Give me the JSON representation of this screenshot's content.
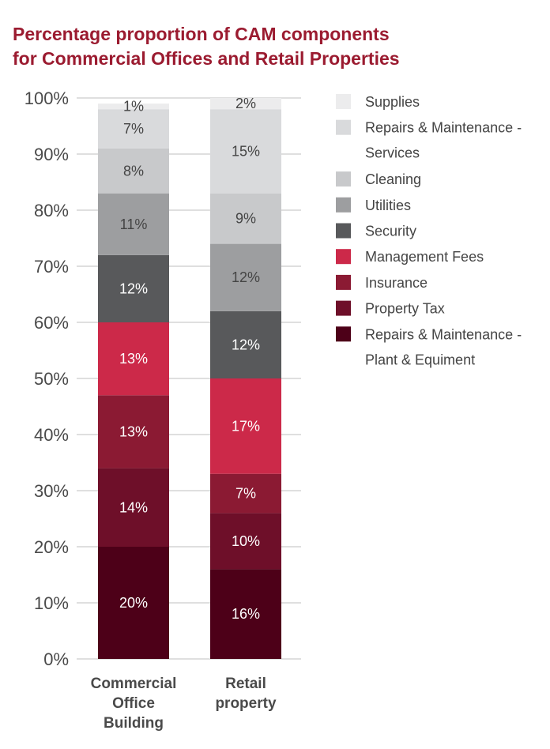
{
  "title": {
    "line1": "Percentage proportion of CAM components",
    "line2": "for Commercial Offices and Retail Properties"
  },
  "chart_data": {
    "type": "bar",
    "stacked": true,
    "title": "Percentage proportion of CAM components for Commercial Offices and Retail Properties",
    "categories": [
      "Commercial Office Building",
      "Retail property"
    ],
    "category_label_lines": [
      [
        "Commercial",
        "Office",
        "Building"
      ],
      [
        "Retail",
        "property"
      ]
    ],
    "yticks": [
      "0%",
      "10%",
      "20%",
      "30%",
      "40%",
      "50%",
      "60%",
      "70%",
      "80%",
      "90%",
      "100%"
    ],
    "ylim": [
      0,
      100
    ],
    "grid": true,
    "legend_position": "right",
    "series": [
      {
        "name": "Repairs & Maintenance - Plant & Equiment",
        "legend_lines": [
          "Repairs & Maintenance -",
          "Plant & Equiment"
        ],
        "color": "#4d0018",
        "text_color": "#ffffff",
        "values": [
          20,
          16
        ]
      },
      {
        "name": "Property Tax",
        "legend_lines": [
          "Property Tax"
        ],
        "color": "#6e0f29",
        "text_color": "#ffffff",
        "values": [
          14,
          10
        ]
      },
      {
        "name": "Insurance",
        "legend_lines": [
          "Insurance"
        ],
        "color": "#8b1a33",
        "text_color": "#ffffff",
        "values": [
          13,
          7
        ]
      },
      {
        "name": "Management Fees",
        "legend_lines": [
          "Management Fees"
        ],
        "color": "#cc2949",
        "text_color": "#ffffff",
        "values": [
          13,
          17
        ]
      },
      {
        "name": "Security",
        "legend_lines": [
          "Security"
        ],
        "color": "#58595b",
        "text_color": "#ffffff",
        "values": [
          12,
          12
        ]
      },
      {
        "name": "Utilities",
        "legend_lines": [
          "Utilities"
        ],
        "color": "#9d9e a0",
        "text_color": "#444444",
        "values": [
          11,
          12
        ]
      },
      {
        "name": "Cleaning",
        "legend_lines": [
          "Cleaning"
        ],
        "color": "#c8c9cb",
        "text_color": "#444444",
        "values": [
          8,
          9
        ]
      },
      {
        "name": "Repairs & Maintenance - Services",
        "legend_lines": [
          "Repairs & Maintenance -",
          "Services"
        ],
        "color": "#d9dadc",
        "text_color": "#444444",
        "values": [
          7,
          15
        ]
      },
      {
        "name": "Supplies",
        "legend_lines": [
          "Supplies"
        ],
        "color": "#ececed",
        "text_color": "#444444",
        "values": [
          1,
          2
        ]
      }
    ],
    "data_labels": [
      [
        "20%",
        "14%",
        "13%",
        "13%",
        "12%",
        "11%",
        "8%",
        "7%",
        "1%"
      ],
      [
        "16%",
        "10%",
        "7%",
        "17%",
        "12%",
        "12%",
        "9%",
        "15%",
        "2%"
      ]
    ]
  }
}
